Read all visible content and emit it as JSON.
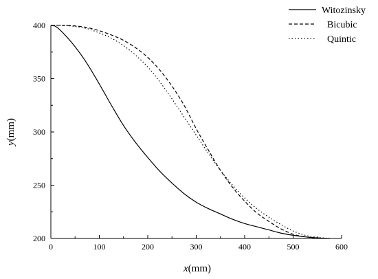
{
  "chart_data": {
    "type": "line",
    "title": "",
    "xlabel_italic": "x",
    "xlabel_unit": "(mm)",
    "ylabel_italic": "y",
    "ylabel_unit": "(mm)",
    "xlim": [
      0,
      600
    ],
    "ylim": [
      200,
      400
    ],
    "x_ticks": [
      0,
      100,
      200,
      300,
      400,
      500,
      600
    ],
    "y_ticks": [
      200,
      250,
      300,
      350,
      400
    ],
    "x_tick_labels": [
      "0",
      "100",
      "200",
      "300",
      "400",
      "500",
      "600"
    ],
    "y_tick_labels": [
      "200",
      "250",
      "300",
      "350",
      "400"
    ],
    "grid": false,
    "legend_position": "top-right",
    "series": [
      {
        "name": "Witozinsky",
        "style": "solid",
        "color": "#000000",
        "x": [
          0,
          10,
          25,
          50,
          75,
          100,
          125,
          150,
          175,
          200,
          225,
          250,
          275,
          300,
          325,
          350,
          375,
          400,
          425,
          450,
          475,
          500,
          525,
          550,
          575
        ],
        "y": [
          400,
          399,
          393,
          380,
          364,
          345,
          325,
          306,
          290,
          276,
          263,
          252,
          242,
          234,
          228,
          223,
          218,
          214,
          211,
          208,
          205,
          203,
          201.5,
          200.5,
          200
        ]
      },
      {
        "name": "Bicubic",
        "style": "dashed",
        "color": "#000000",
        "x": [
          0,
          25,
          50,
          75,
          100,
          125,
          150,
          175,
          200,
          225,
          250,
          275,
          300,
          325,
          350,
          375,
          400,
          425,
          450,
          475,
          500,
          525,
          550,
          575
        ],
        "y": [
          400,
          400,
          399.5,
          398,
          395,
          391,
          386,
          379,
          370,
          358,
          343,
          325,
          303,
          283,
          264,
          248,
          235,
          224,
          216,
          209,
          204,
          201.5,
          200.5,
          200
        ]
      },
      {
        "name": "Quintic",
        "style": "dotted",
        "color": "#000000",
        "x": [
          0,
          25,
          50,
          75,
          100,
          125,
          150,
          175,
          200,
          225,
          250,
          275,
          300,
          325,
          350,
          375,
          400,
          425,
          450,
          475,
          500,
          525,
          550,
          575
        ],
        "y": [
          400,
          400,
          399,
          397,
          393,
          388,
          381,
          372,
          361,
          347,
          331,
          314,
          297,
          280,
          264,
          250,
          238,
          228,
          220,
          213,
          207,
          203,
          201,
          200
        ]
      }
    ]
  }
}
